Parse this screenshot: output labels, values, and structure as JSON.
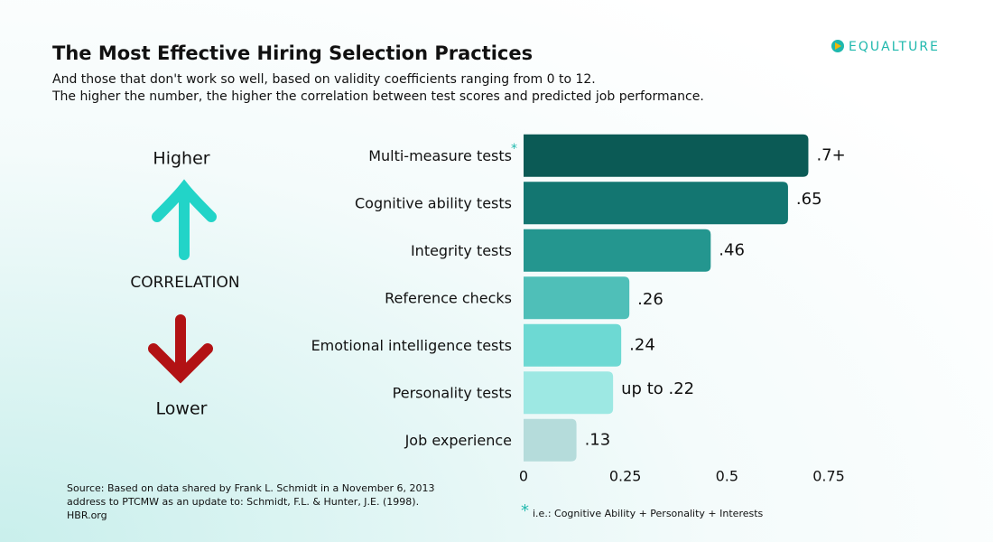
{
  "chart_data": {
    "type": "hbar",
    "title": "The Most Effective Hiring Selection Practices",
    "subtitle": [
      "And those that don't work so well, based on validity coefficients ranging from 0 to 12.",
      "The higher the number, the higher the correlation between test scores and predicted job performance."
    ],
    "brand": "EQUALTURE",
    "scale_labels": {
      "high": "Higher",
      "middle": "CORRELATION",
      "low": "Lower"
    },
    "categories": [
      "Multi-measure tests",
      "Cognitive ability tests",
      "Integrity tests",
      "Reference checks",
      "Emotional intelligence tests",
      "Personality tests",
      "Job experience"
    ],
    "values": [
      0.7,
      0.65,
      0.46,
      0.26,
      0.24,
      0.22,
      0.13
    ],
    "value_labels": [
      ".7+",
      ".65",
      ".46",
      ".26",
      ".24",
      "up to .22",
      ".13"
    ],
    "colors": [
      "#0b5a55",
      "#137671",
      "#24968f",
      "#4fbfb8",
      "#6dd9d3",
      "#9de8e3",
      "#b5dcdb"
    ],
    "footnote_marker": "*",
    "footnote": "i.e.: Cognitive Ability + Personality + Interests",
    "source": [
      "Source: Based on data shared by Frank L. Schmidt in a November 6, 2013",
      "address to PTCMW as an update to: Schmidt, F.L. & Hunter, J.E. (1998).",
      "HBR.org"
    ],
    "xlim": [
      0,
      0.75
    ],
    "xticks": [
      0,
      0.25,
      0.5,
      0.75
    ],
    "grid": false
  }
}
